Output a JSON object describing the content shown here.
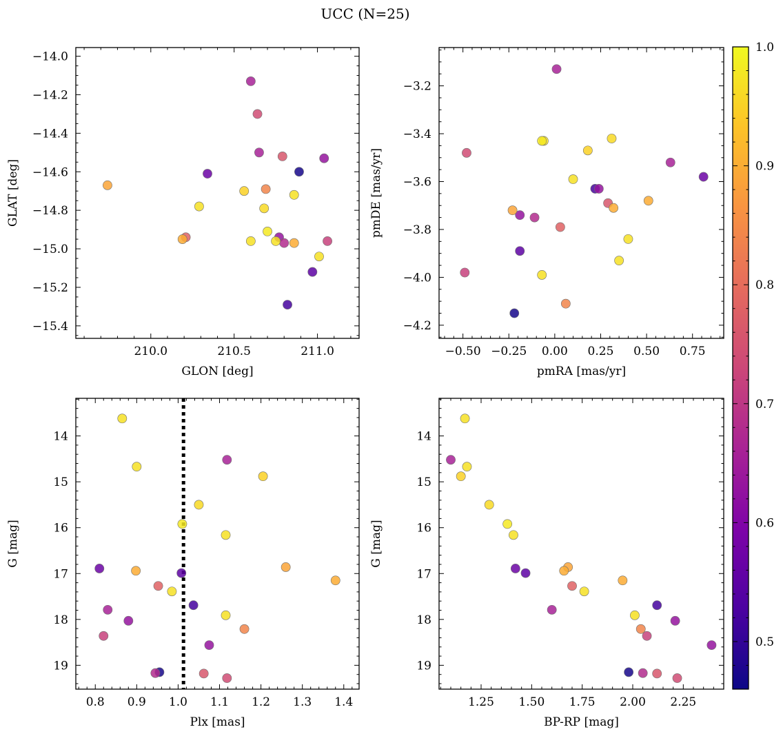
{
  "chart_data": {
    "title": "UCC (N=25)",
    "colormap": "plasma",
    "colorbar": {
      "vmin": 0.46,
      "vmax": 1.0,
      "ticks": [
        0.5,
        0.6,
        0.7,
        0.8,
        0.9,
        1.0
      ],
      "tick_labels": [
        "0.5",
        "0.6",
        "0.7",
        "0.8",
        "0.9",
        "1.0"
      ]
    },
    "stars": [
      {
        "glon": 210.6,
        "glat": -14.13,
        "pmra": 0.01,
        "pmde": -3.13,
        "plx": 1.118,
        "g": 14.52,
        "bprp": 1.1,
        "prob": 0.66
      },
      {
        "glon": 210.64,
        "glat": -14.3,
        "pmra": -0.48,
        "pmde": -3.48,
        "plx": 1.118,
        "g": 19.28,
        "bprp": 2.22,
        "prob": 0.74
      },
      {
        "glon": 210.65,
        "glat": -14.5,
        "pmra": 0.63,
        "pmde": -3.52,
        "plx": 0.83,
        "g": 17.79,
        "bprp": 1.6,
        "prob": 0.66
      },
      {
        "glon": 210.79,
        "glat": -14.52,
        "pmra": 0.29,
        "pmde": -3.69,
        "plx": 1.062,
        "g": 19.18,
        "bprp": 2.12,
        "prob": 0.76
      },
      {
        "glon": 210.89,
        "glat": -14.6,
        "pmra": -0.22,
        "pmde": -4.15,
        "plx": 0.955,
        "g": 19.15,
        "bprp": 1.98,
        "prob": 0.47
      },
      {
        "glon": 211.04,
        "glat": -14.53,
        "pmra": -0.19,
        "pmde": -3.74,
        "plx": 0.88,
        "g": 18.03,
        "bprp": 2.21,
        "prob": 0.63
      },
      {
        "glon": 210.34,
        "glat": -14.61,
        "pmra": 0.81,
        "pmde": -3.58,
        "plx": 0.81,
        "g": 16.89,
        "bprp": 1.42,
        "prob": 0.57
      },
      {
        "glon": 209.74,
        "glat": -14.67,
        "pmra": -0.23,
        "pmde": -3.72,
        "plx": 1.26,
        "g": 16.86,
        "bprp": 1.68,
        "prob": 0.89
      },
      {
        "glon": 210.56,
        "glat": -14.7,
        "pmra": 0.18,
        "pmde": -3.47,
        "plx": 1.205,
        "g": 14.88,
        "bprp": 1.15,
        "prob": 0.95
      },
      {
        "glon": 210.69,
        "glat": -14.69,
        "pmra": 0.06,
        "pmde": -4.11,
        "plx": 1.16,
        "g": 18.21,
        "bprp": 2.04,
        "prob": 0.84
      },
      {
        "glon": 210.29,
        "glat": -14.78,
        "pmra": 0.1,
        "pmde": -3.59,
        "plx": 0.9,
        "g": 14.67,
        "bprp": 1.18,
        "prob": 0.97
      },
      {
        "glon": 210.68,
        "glat": -14.79,
        "pmra": 0.31,
        "pmde": -3.42,
        "plx": 1.05,
        "g": 15.5,
        "bprp": 1.29,
        "prob": 0.96
      },
      {
        "glon": 210.86,
        "glat": -14.72,
        "pmra": 0.4,
        "pmde": -3.84,
        "plx": 1.115,
        "g": 17.91,
        "bprp": 2.01,
        "prob": 0.97
      },
      {
        "glon": 210.7,
        "glat": -14.91,
        "pmra": -0.07,
        "pmde": -3.43,
        "plx": 1.01,
        "g": 15.92,
        "bprp": 1.38,
        "prob": 0.98
      },
      {
        "glon": 210.6,
        "glat": -14.96,
        "pmra": 0.35,
        "pmde": -3.93,
        "plx": 1.115,
        "g": 16.16,
        "bprp": 1.41,
        "prob": 0.97
      },
      {
        "glon": 210.75,
        "glat": -14.96,
        "pmra": -0.07,
        "pmde": -3.99,
        "plx": 0.985,
        "g": 17.39,
        "bprp": 1.76,
        "prob": 0.97
      },
      {
        "glon": 211.01,
        "glat": -15.04,
        "pmra": -0.06,
        "pmde": -3.43,
        "plx": 0.865,
        "g": 13.62,
        "bprp": 1.17,
        "prob": 0.97
      },
      {
        "glon": 210.19,
        "glat": -14.95,
        "pmra": 0.51,
        "pmde": -3.68,
        "plx": 1.38,
        "g": 17.15,
        "bprp": 1.95,
        "prob": 0.9
      },
      {
        "glon": 210.86,
        "glat": -14.97,
        "pmra": 0.32,
        "pmde": -3.71,
        "plx": 0.898,
        "g": 16.94,
        "bprp": 1.66,
        "prob": 0.9
      },
      {
        "glon": 210.21,
        "glat": -14.94,
        "pmra": 0.03,
        "pmde": -3.79,
        "plx": 0.952,
        "g": 17.27,
        "bprp": 1.7,
        "prob": 0.78
      },
      {
        "glon": 211.06,
        "glat": -14.96,
        "pmra": -0.49,
        "pmde": -3.98,
        "plx": 0.82,
        "g": 18.36,
        "bprp": 2.07,
        "prob": 0.72
      },
      {
        "glon": 210.8,
        "glat": -14.97,
        "pmra": -0.11,
        "pmde": -3.75,
        "plx": 0.945,
        "g": 19.17,
        "bprp": 2.05,
        "prob": 0.68
      },
      {
        "glon": 210.77,
        "glat": -14.94,
        "pmra": 0.24,
        "pmde": -3.63,
        "plx": 1.075,
        "g": 18.56,
        "bprp": 2.39,
        "prob": 0.63
      },
      {
        "glon": 210.97,
        "glat": -15.12,
        "pmra": -0.19,
        "pmde": -3.89,
        "plx": 1.008,
        "g": 16.99,
        "bprp": 1.47,
        "prob": 0.55
      },
      {
        "glon": 210.82,
        "glat": -15.29,
        "pmra": 0.22,
        "pmde": -3.63,
        "plx": 1.037,
        "g": 17.69,
        "bprp": 2.12,
        "prob": 0.52
      }
    ],
    "panels": [
      {
        "name": "glon-glat",
        "type": "scatter",
        "x_field": "glon",
        "y_field": "glat",
        "xlabel": "GLON [deg]",
        "ylabel": "GLAT [deg]",
        "xlim": [
          209.55,
          211.25
        ],
        "ylim": [
          -15.465,
          -13.955
        ],
        "xticks": [
          210.0,
          210.5,
          211.0
        ],
        "xtick_labels": [
          "210.0",
          "210.5",
          "211.0"
        ],
        "xminor": 0.1,
        "yticks": [
          -15.4,
          -15.2,
          -15.0,
          -14.8,
          -14.6,
          -14.4,
          -14.2,
          -14.0
        ],
        "ytick_labels": [
          "−15.4",
          "−15.2",
          "−15.0",
          "−14.8",
          "−14.6",
          "−14.4",
          "−14.2",
          "−14.0"
        ],
        "yminor": 0.05
      },
      {
        "name": "pmra-pmde",
        "type": "scatter",
        "x_field": "pmra",
        "y_field": "pmde",
        "xlabel": "pmRA [mas/yr]",
        "ylabel": "pmDE [mas/yr]",
        "xlim": [
          -0.63,
          0.92
        ],
        "ylim": [
          -4.255,
          -3.04
        ],
        "xticks": [
          -0.5,
          -0.25,
          0.0,
          0.25,
          0.5,
          0.75
        ],
        "xtick_labels": [
          "−0.50",
          "−0.25",
          "0.00",
          "0.25",
          "0.50",
          "0.75"
        ],
        "xminor": 0.05,
        "yticks": [
          -4.2,
          -4.0,
          -3.8,
          -3.6,
          -3.4,
          -3.2
        ],
        "ytick_labels": [
          "−4.2",
          "−4.0",
          "−3.8",
          "−3.6",
          "−3.4",
          "−3.2"
        ],
        "yminor": 0.05
      },
      {
        "name": "plx-g",
        "type": "scatter",
        "x_field": "plx",
        "y_field": "g",
        "xlabel": "Plx [mas]",
        "ylabel": "G [mag]",
        "xlim": [
          0.753,
          1.437
        ],
        "ylim": [
          19.52,
          13.18
        ],
        "y_inverted": true,
        "xticks": [
          0.8,
          0.9,
          1.0,
          1.1,
          1.2,
          1.3,
          1.4
        ],
        "xtick_labels": [
          "0.8",
          "0.9",
          "1.0",
          "1.1",
          "1.2",
          "1.3",
          "1.4"
        ],
        "xminor": 0.02,
        "yticks": [
          14,
          15,
          16,
          17,
          18,
          19
        ],
        "ytick_labels": [
          "14",
          "15",
          "16",
          "17",
          "18",
          "19"
        ],
        "yminor": 0.2,
        "vline": {
          "x": 1.013,
          "style": "dotted"
        }
      },
      {
        "name": "bprp-g",
        "type": "scatter",
        "x_field": "bprp",
        "y_field": "g",
        "xlabel": "BP-RP [mag]",
        "ylabel": "G [mag]",
        "xlim": [
          1.042,
          2.45
        ],
        "ylim": [
          19.52,
          13.18
        ],
        "y_inverted": true,
        "xticks": [
          1.25,
          1.5,
          1.75,
          2.0,
          2.25
        ],
        "xtick_labels": [
          "1.25",
          "1.50",
          "1.75",
          "2.00",
          "2.25"
        ],
        "xminor": 0.05,
        "yticks": [
          14,
          15,
          16,
          17,
          18,
          19
        ],
        "ytick_labels": [
          "14",
          "15",
          "16",
          "17",
          "18",
          "19"
        ],
        "yminor": 0.2
      }
    ]
  }
}
